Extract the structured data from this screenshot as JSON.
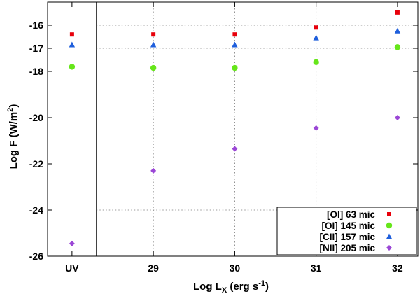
{
  "chart_data": {
    "type": "scatter",
    "title": "",
    "xlabel": "Log L",
    "xlabel_sub": "X",
    "xlabel_tail": " (erg s",
    "xlabel_sup": "-1",
    "xlabel_close": ")",
    "ylabel": "Log F (W/m",
    "ylabel_sup": "2",
    "ylabel_close": ")",
    "categories": [
      "UV",
      "29",
      "30",
      "31",
      "32"
    ],
    "xlim": [
      -0.3,
      4.25
    ],
    "ylim": [
      -26,
      -15
    ],
    "yticks": [
      -16,
      -17,
      -18,
      -20,
      -22,
      -24,
      -26
    ],
    "ytick_labels": [
      "-16",
      "-17",
      "-18",
      "-20",
      "-22",
      "-24",
      "-26"
    ],
    "separator_at": 0.3,
    "gridlines_y": [
      -16,
      -17,
      -24
    ],
    "gridlines_x": [
      1,
      2,
      3
    ],
    "legend_position": "bottom-right",
    "series": [
      {
        "name": "[OI] 63 mic",
        "marker": "square",
        "color": "#e8000b",
        "values": [
          -16.4,
          -16.4,
          -16.4,
          -16.1,
          -15.45
        ]
      },
      {
        "name": "[OI] 145 mic",
        "marker": "circle",
        "color": "#66e61a",
        "values": [
          -17.8,
          -17.85,
          -17.85,
          -17.6,
          -16.95
        ]
      },
      {
        "name": "[CII] 157 mic",
        "marker": "triangle",
        "color": "#1f5fdc",
        "values": [
          -16.85,
          -16.85,
          -16.85,
          -16.55,
          -16.25
        ]
      },
      {
        "name": "[NII] 205 mic",
        "marker": "diamond",
        "color": "#9b47d6",
        "values": [
          -25.45,
          -22.3,
          -21.35,
          -20.45,
          -20.0
        ]
      }
    ]
  }
}
